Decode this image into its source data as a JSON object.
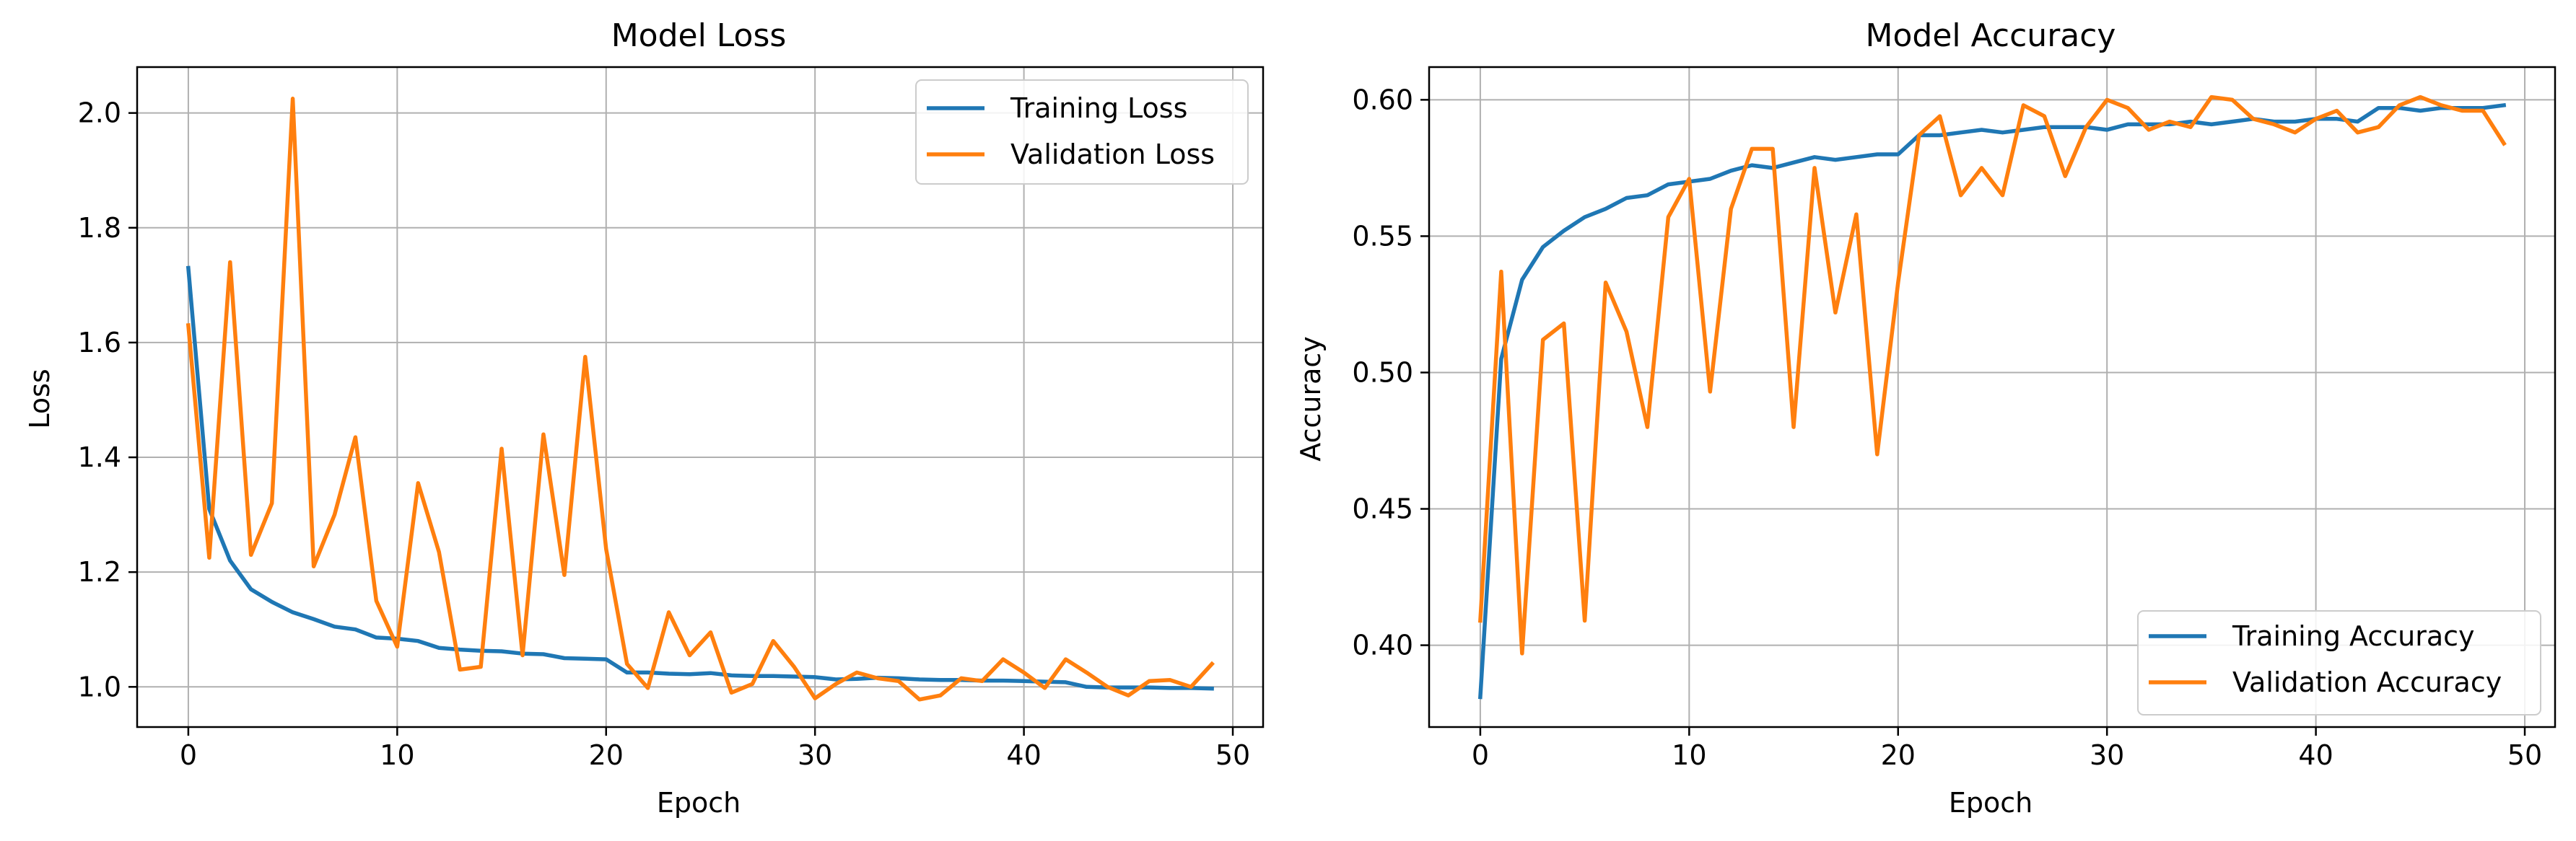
{
  "chart_data": [
    {
      "type": "line",
      "title": "Model Loss",
      "xlabel": "Epoch",
      "ylabel": "Loss",
      "xlim": [
        -2.45,
        51.45
      ],
      "ylim": [
        0.93,
        2.08
      ],
      "xticks": [
        0,
        10,
        20,
        30,
        40,
        50
      ],
      "xtick_labels": [
        "0",
        "10",
        "20",
        "30",
        "40",
        "50"
      ],
      "yticks": [
        1.0,
        1.2,
        1.4,
        1.6,
        1.8,
        2.0
      ],
      "ytick_labels": [
        "1.0",
        "1.2",
        "1.4",
        "1.6",
        "1.8",
        "2.0"
      ],
      "grid": true,
      "legend_position": "upper right",
      "x": [
        0,
        1,
        2,
        3,
        4,
        5,
        6,
        7,
        8,
        9,
        10,
        11,
        12,
        13,
        14,
        15,
        16,
        17,
        18,
        19,
        20,
        21,
        22,
        23,
        24,
        25,
        26,
        27,
        28,
        29,
        30,
        31,
        32,
        33,
        34,
        35,
        36,
        37,
        38,
        39,
        40,
        41,
        42,
        43,
        44,
        45,
        46,
        47,
        48,
        49
      ],
      "series": [
        {
          "name": "Training Loss",
          "color": "#1f77b4",
          "values": [
            1.73,
            1.31,
            1.22,
            1.17,
            1.148,
            1.13,
            1.118,
            1.105,
            1.1,
            1.086,
            1.084,
            1.08,
            1.068,
            1.065,
            1.063,
            1.062,
            1.058,
            1.057,
            1.05,
            1.049,
            1.048,
            1.025,
            1.025,
            1.023,
            1.022,
            1.024,
            1.02,
            1.019,
            1.019,
            1.018,
            1.017,
            1.013,
            1.014,
            1.016,
            1.015,
            1.013,
            1.012,
            1.012,
            1.011,
            1.011,
            1.01,
            1.009,
            1.008,
            1.0,
            0.999,
            0.999,
            0.999,
            0.998,
            0.998,
            0.997
          ]
        },
        {
          "name": "Validation Loss",
          "color": "#ff7f0e",
          "values": [
            1.63,
            1.225,
            1.74,
            1.23,
            1.32,
            2.025,
            1.21,
            1.3,
            1.435,
            1.15,
            1.07,
            1.355,
            1.235,
            1.03,
            1.035,
            1.415,
            1.055,
            1.44,
            1.195,
            1.575,
            1.24,
            1.04,
            0.998,
            1.13,
            1.055,
            1.095,
            0.99,
            1.005,
            1.08,
            1.035,
            0.98,
            1.005,
            1.025,
            1.015,
            1.01,
            0.978,
            0.985,
            1.015,
            1.01,
            1.048,
            1.025,
            0.998,
            1.048,
            1.025,
            1.0,
            0.985,
            1.01,
            1.012,
            1.0,
            1.04
          ]
        }
      ]
    },
    {
      "type": "line",
      "title": "Model Accuracy",
      "xlabel": "Epoch",
      "ylabel": "Accuracy",
      "xlim": [
        -2.45,
        51.45
      ],
      "ylim": [
        0.37,
        0.612
      ],
      "xticks": [
        0,
        10,
        20,
        30,
        40,
        50
      ],
      "xtick_labels": [
        "0",
        "10",
        "20",
        "30",
        "40",
        "50"
      ],
      "yticks": [
        0.4,
        0.45,
        0.5,
        0.55,
        0.6
      ],
      "ytick_labels": [
        "0.40",
        "0.45",
        "0.50",
        "0.55",
        "0.60"
      ],
      "grid": true,
      "legend_position": "lower right",
      "x": [
        0,
        1,
        2,
        3,
        4,
        5,
        6,
        7,
        8,
        9,
        10,
        11,
        12,
        13,
        14,
        15,
        16,
        17,
        18,
        19,
        20,
        21,
        22,
        23,
        24,
        25,
        26,
        27,
        28,
        29,
        30,
        31,
        32,
        33,
        34,
        35,
        36,
        37,
        38,
        39,
        40,
        41,
        42,
        43,
        44,
        45,
        46,
        47,
        48,
        49
      ],
      "series": [
        {
          "name": "Training Accuracy",
          "color": "#1f77b4",
          "values": [
            0.381,
            0.505,
            0.534,
            0.546,
            0.552,
            0.557,
            0.56,
            0.564,
            0.565,
            0.569,
            0.57,
            0.571,
            0.574,
            0.576,
            0.575,
            0.577,
            0.579,
            0.578,
            0.579,
            0.58,
            0.58,
            0.587,
            0.587,
            0.588,
            0.589,
            0.588,
            0.589,
            0.59,
            0.59,
            0.59,
            0.589,
            0.591,
            0.591,
            0.591,
            0.592,
            0.591,
            0.592,
            0.593,
            0.592,
            0.592,
            0.593,
            0.593,
            0.592,
            0.597,
            0.597,
            0.596,
            0.597,
            0.597,
            0.597,
            0.598
          ]
        },
        {
          "name": "Validation Accuracy",
          "color": "#ff7f0e",
          "values": [
            0.409,
            0.537,
            0.397,
            0.512,
            0.518,
            0.409,
            0.533,
            0.515,
            0.48,
            0.557,
            0.571,
            0.493,
            0.56,
            0.582,
            0.582,
            0.48,
            0.575,
            0.522,
            0.558,
            0.47,
            0.533,
            0.587,
            0.594,
            0.565,
            0.575,
            0.565,
            0.598,
            0.594,
            0.572,
            0.59,
            0.6,
            0.597,
            0.589,
            0.592,
            0.59,
            0.601,
            0.6,
            0.593,
            0.591,
            0.588,
            0.593,
            0.596,
            0.588,
            0.59,
            0.598,
            0.601,
            0.598,
            0.596,
            0.596,
            0.584
          ]
        }
      ]
    }
  ]
}
